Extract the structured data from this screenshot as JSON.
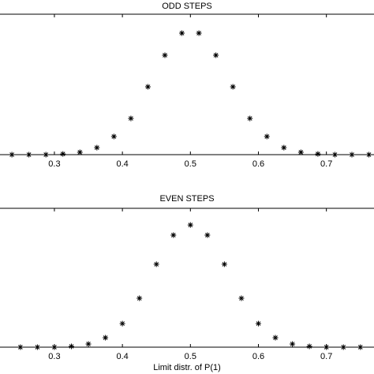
{
  "chart_data": [
    {
      "type": "scatter",
      "title": "ODD STEPS",
      "x": [
        0.2375,
        0.2625,
        0.2875,
        0.3125,
        0.3375,
        0.3625,
        0.3875,
        0.4125,
        0.4375,
        0.4625,
        0.4875,
        0.5125,
        0.5375,
        0.5625,
        0.5875,
        0.6125,
        0.6375,
        0.6625,
        0.6875,
        0.7125,
        0.7375,
        0.7625
      ],
      "y": [
        0,
        0,
        0,
        0.005,
        0.017,
        0.05,
        0.129,
        0.258,
        0.483,
        0.708,
        0.865,
        0.865,
        0.708,
        0.483,
        0.258,
        0.129,
        0.05,
        0.017,
        0.005,
        0,
        0,
        0
      ],
      "color": "#000000",
      "xlim": [
        0.22,
        0.77
      ],
      "ylim": [
        0,
        1
      ],
      "xticks": [
        0.3,
        0.4,
        0.5,
        0.6,
        0.7
      ]
    },
    {
      "type": "scatter",
      "title": "EVEN STEPS",
      "x_label": "Limit distr. of P(1)",
      "x": [
        0.25,
        0.275,
        0.3,
        0.325,
        0.35,
        0.375,
        0.4,
        0.425,
        0.45,
        0.475,
        0.5,
        0.525,
        0.55,
        0.575,
        0.6,
        0.625,
        0.65,
        0.675,
        0.7,
        0.725,
        0.75
      ],
      "y": [
        0,
        0,
        0,
        0.006,
        0.023,
        0.068,
        0.17,
        0.352,
        0.597,
        0.807,
        0.88,
        0.807,
        0.597,
        0.352,
        0.17,
        0.068,
        0.023,
        0.006,
        0,
        0,
        0
      ],
      "color": "#000000",
      "xlim": [
        0.22,
        0.77
      ],
      "ylim": [
        0,
        1
      ],
      "xticks": [
        0.3,
        0.4,
        0.5,
        0.6,
        0.7
      ]
    }
  ]
}
